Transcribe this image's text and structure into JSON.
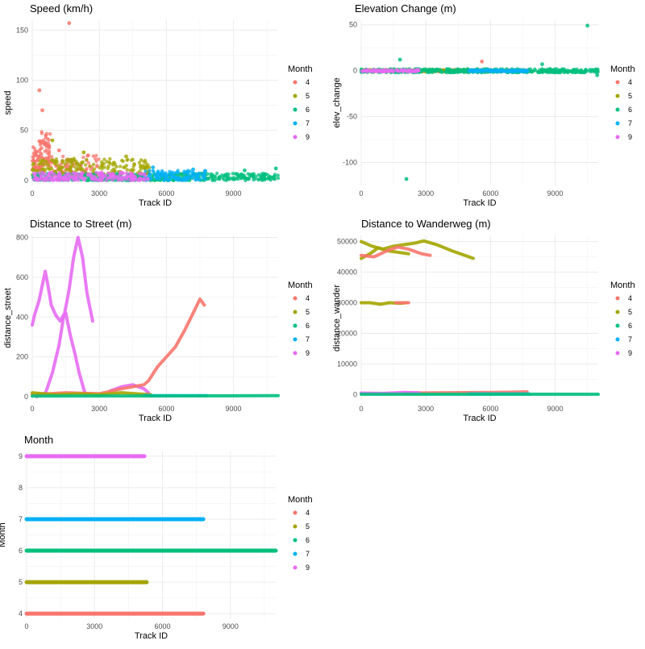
{
  "colors": {
    "4": "#F8766D",
    "5": "#A3A500",
    "6": "#00BF7D",
    "7": "#00B0F6",
    "9": "#E76BF3"
  },
  "legend": {
    "title": "Month",
    "items": [
      "4",
      "5",
      "6",
      "7",
      "9"
    ]
  },
  "chart_data": [
    {
      "type": "scatter",
      "title": "Speed (km/h)",
      "xlabel": "Track ID",
      "ylabel": "speed",
      "xlim": [
        0,
        11000
      ],
      "ylim": [
        -5,
        160
      ],
      "xticks": [
        0,
        3000,
        6000,
        9000
      ],
      "yticks": [
        0,
        50,
        100,
        150
      ],
      "series": [
        {
          "name": "4",
          "segments": [
            [
              0,
              10,
              400,
              40
            ],
            [
              400,
              15,
              800,
              50
            ],
            [
              800,
              5,
              3000,
              25
            ]
          ],
          "outliers": [
            [
              1650,
              157
            ],
            [
              320,
              90
            ],
            [
              450,
              70
            ],
            [
              1200,
              30
            ],
            [
              2500,
              25
            ]
          ]
        },
        {
          "name": "5",
          "segments": [
            [
              0,
              5,
              5300,
              22
            ]
          ],
          "outliers": [
            [
              900,
              40
            ],
            [
              2300,
              28
            ],
            [
              4200,
              24
            ]
          ]
        },
        {
          "name": "6",
          "segments": [
            [
              0,
              0,
              11000,
              7
            ]
          ],
          "outliers": [
            [
              9500,
              10
            ],
            [
              10900,
              12
            ]
          ]
        },
        {
          "name": "7",
          "segments": [
            [
              5000,
              0,
              7800,
              10
            ]
          ],
          "outliers": [
            [
              5400,
              13
            ],
            [
              7200,
              11
            ]
          ]
        },
        {
          "name": "9",
          "segments": [
            [
              0,
              0,
              5200,
              8
            ]
          ],
          "outliers": []
        }
      ]
    },
    {
      "type": "scatter",
      "title": "Elevation Change (m)",
      "xlabel": "Track ID",
      "ylabel": "elev_change",
      "xlim": [
        0,
        11000
      ],
      "ylim": [
        -125,
        55
      ],
      "xticks": [
        0,
        3000,
        6000,
        9000
      ],
      "yticks": [
        -100,
        -50,
        0,
        50
      ],
      "series": [
        {
          "name": "4",
          "segments": [
            [
              0,
              -1,
              7800,
              1
            ]
          ],
          "outliers": [
            [
              5600,
              10
            ]
          ]
        },
        {
          "name": "5",
          "segments": [
            [
              0,
              -1,
              5300,
              1
            ]
          ],
          "outliers": []
        },
        {
          "name": "6",
          "segments": [
            [
              0,
              -2,
              11000,
              2
            ]
          ],
          "outliers": [
            [
              1800,
              12
            ],
            [
              2100,
              -118
            ],
            [
              8400,
              7
            ],
            [
              10500,
              49
            ],
            [
              10950,
              -5
            ]
          ]
        },
        {
          "name": "7",
          "segments": [
            [
              5000,
              -1,
              7800,
              1
            ]
          ],
          "outliers": []
        },
        {
          "name": "9",
          "segments": [
            [
              0,
              -1,
              2700,
              1
            ]
          ],
          "outliers": []
        }
      ]
    },
    {
      "type": "line",
      "title": "Distance to Street (m)",
      "xlabel": "Track ID",
      "ylabel": "distance_street",
      "xlim": [
        0,
        11000
      ],
      "ylim": [
        -20,
        810
      ],
      "xticks": [
        0,
        3000,
        6000,
        9000
      ],
      "yticks": [
        0,
        200,
        400,
        600,
        800
      ],
      "series": [
        {
          "name": "9",
          "lines": [
            [
              [
                0,
                360
              ],
              [
                100,
                410
              ],
              [
                300,
                480
              ],
              [
                450,
                560
              ],
              [
                580,
                630
              ],
              [
                700,
                560
              ],
              [
                850,
                460
              ],
              [
                1050,
                410
              ],
              [
                1250,
                380
              ],
              [
                1450,
                420
              ],
              [
                1650,
                540
              ],
              [
                1850,
                700
              ],
              [
                2050,
                800
              ],
              [
                2250,
                700
              ],
              [
                2450,
                520
              ],
              [
                2700,
                380
              ]
            ],
            [
              [
                200,
                0
              ],
              [
                600,
                20
              ],
              [
                900,
                120
              ],
              [
                1200,
                260
              ],
              [
                1400,
                400
              ],
              [
                1500,
                420
              ],
              [
                1700,
                310
              ],
              [
                1900,
                220
              ],
              [
                2100,
                120
              ],
              [
                2300,
                40
              ],
              [
                2400,
                5
              ]
            ],
            [
              [
                3500,
                30
              ],
              [
                4000,
                50
              ],
              [
                4500,
                60
              ],
              [
                5000,
                40
              ],
              [
                5200,
                20
              ]
            ]
          ]
        },
        {
          "name": "4",
          "lines": [
            [
              [
                0,
                10
              ],
              [
                1500,
                20
              ],
              [
                3000,
                15
              ],
              [
                4000,
                40
              ],
              [
                5000,
                60
              ],
              [
                5200,
                80
              ],
              [
                5600,
                150
              ],
              [
                6000,
                200
              ],
              [
                6400,
                250
              ],
              [
                6800,
                330
              ],
              [
                7200,
                420
              ],
              [
                7500,
                490
              ],
              [
                7700,
                460
              ]
            ]
          ]
        },
        {
          "name": "5",
          "lines": [
            [
              [
                0,
                20
              ],
              [
                1000,
                10
              ],
              [
                2000,
                15
              ],
              [
                3000,
                10
              ],
              [
                4000,
                20
              ],
              [
                5300,
                10
              ]
            ]
          ]
        },
        {
          "name": "7",
          "lines": [
            [
              [
                5000,
                5
              ],
              [
                7800,
                5
              ]
            ]
          ]
        },
        {
          "name": "6",
          "lines": [
            [
              [
                0,
                3
              ],
              [
                5000,
                4
              ],
              [
                11000,
                5
              ]
            ]
          ]
        }
      ]
    },
    {
      "type": "line",
      "title": "Distance to Wanderweg (m)",
      "xlabel": "Track ID",
      "ylabel": "distance_wander",
      "xlim": [
        0,
        11000
      ],
      "ylim": [
        -2000,
        52000
      ],
      "xticks": [
        0,
        3000,
        6000,
        9000
      ],
      "yticks": [
        0,
        10000,
        20000,
        30000,
        40000,
        50000
      ],
      "series": [
        {
          "name": "5",
          "lines": [
            [
              [
                0,
                50000
              ],
              [
                500,
                48500
              ],
              [
                1000,
                47500
              ],
              [
                1500,
                48500
              ],
              [
                2000,
                49000
              ],
              [
                2500,
                49500
              ],
              [
                2900,
                50200
              ],
              [
                3500,
                49000
              ],
              [
                4200,
                47000
              ],
              [
                5200,
                44500
              ]
            ],
            [
              [
                0,
                44500
              ],
              [
                400,
                46000
              ],
              [
                800,
                48000
              ],
              [
                1200,
                47000
              ],
              [
                1700,
                46500
              ],
              [
                2200,
                46000
              ]
            ],
            [
              [
                0,
                30000
              ],
              [
                400,
                30000
              ],
              [
                900,
                29500
              ],
              [
                1300,
                30000
              ],
              [
                1800,
                29800
              ],
              [
                2100,
                30000
              ]
            ]
          ]
        },
        {
          "name": "4",
          "lines": [
            [
              [
                0,
                45500
              ],
              [
                600,
                45000
              ],
              [
                1200,
                47000
              ],
              [
                1700,
                48200
              ],
              [
                2200,
                47500
              ],
              [
                2800,
                46000
              ],
              [
                3200,
                45500
              ]
            ],
            [
              [
                1600,
                30000
              ],
              [
                2200,
                30000
              ]
            ],
            [
              [
                2000,
                500
              ],
              [
                4000,
                600
              ],
              [
                6000,
                700
              ],
              [
                7700,
                900
              ]
            ]
          ]
        },
        {
          "name": "9",
          "lines": [
            [
              [
                0,
                500
              ],
              [
                1000,
                400
              ],
              [
                2000,
                700
              ],
              [
                2700,
                600
              ]
            ]
          ]
        },
        {
          "name": "7",
          "lines": [
            [
              [
                5000,
                200
              ],
              [
                7800,
                200
              ]
            ]
          ]
        },
        {
          "name": "6",
          "lines": [
            [
              [
                0,
                100
              ],
              [
                11000,
                100
              ]
            ]
          ]
        }
      ]
    },
    {
      "type": "scatter",
      "title": "Month",
      "xlabel": "Track ID",
      "ylabel": "Month",
      "xlim": [
        0,
        11000
      ],
      "ylim": [
        3.85,
        9.15
      ],
      "xticks": [
        0,
        3000,
        6000,
        9000
      ],
      "yticks": [
        4,
        5,
        6,
        7,
        8,
        9
      ],
      "series": [
        {
          "name": "4",
          "range": [
            0,
            7800
          ],
          "y": 4
        },
        {
          "name": "5",
          "range": [
            0,
            5300
          ],
          "y": 5
        },
        {
          "name": "6",
          "range": [
            0,
            11000
          ],
          "y": 6
        },
        {
          "name": "7",
          "range": [
            0,
            7800
          ],
          "y": 7
        },
        {
          "name": "9",
          "range": [
            0,
            5200
          ],
          "y": 9
        }
      ]
    }
  ]
}
